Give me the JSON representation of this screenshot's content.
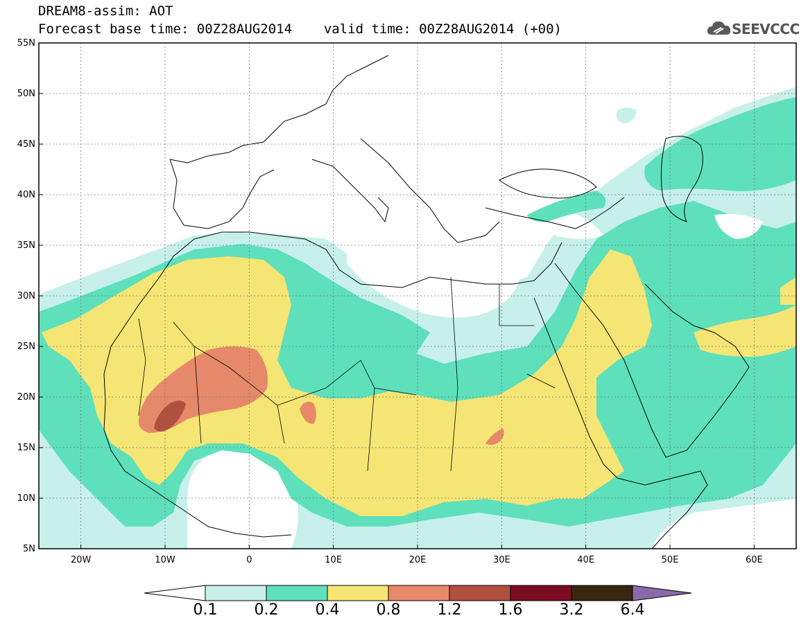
{
  "header": {
    "title": "DREAM8-assim: AOT",
    "base_time_label": "Forecast base time: 00Z28AUG2014",
    "valid_time_label": "valid time: 00Z28AUG2014 (+00)",
    "logo_text": "SEEVCCC"
  },
  "map": {
    "lon_range": [
      -25,
      65
    ],
    "lat_range": [
      5,
      55
    ],
    "lat_ticks": [
      "55N",
      "50N",
      "45N",
      "40N",
      "35N",
      "30N",
      "25N",
      "20N",
      "15N",
      "10N",
      "5N"
    ],
    "lon_ticks": [
      "20W",
      "10W",
      "0",
      "10E",
      "20E",
      "30E",
      "40E",
      "50E",
      "60E"
    ],
    "grid": true,
    "variable": "Aerosol Optical Thickness"
  },
  "colorbar": {
    "labels": [
      "0.1",
      "0.2",
      "0.4",
      "0.8",
      "1.2",
      "1.6",
      "3.2",
      "6.4"
    ],
    "colors": [
      "#c7f0eb",
      "#5ee0bb",
      "#f5e574",
      "#e5896a",
      "#b0503e",
      "#7a0c22",
      "#3a2511",
      "#8a6aa9"
    ],
    "under_color": "#ffffff",
    "over_color": "#8a6aa9"
  }
}
